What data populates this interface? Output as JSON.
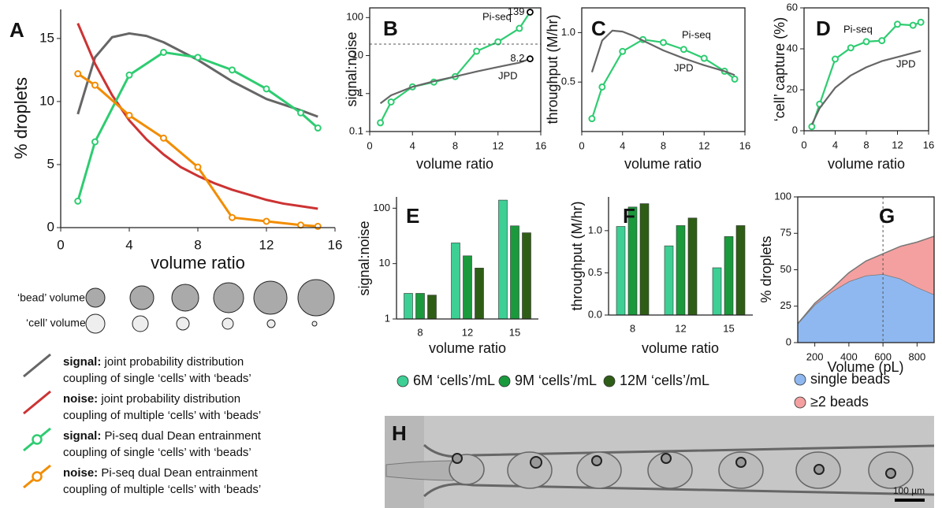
{
  "chart_data": [
    {
      "type": "line",
      "label": "A",
      "xlabel": "volume ratio",
      "ylabel": "% droplets",
      "xlim": [
        0,
        16
      ],
      "xticks": [
        0,
        4,
        8,
        12,
        16
      ],
      "ylim": [
        0,
        17.3
      ],
      "yticks": [
        0,
        5,
        10,
        15
      ],
      "series": [
        {
          "name": "signal:",
          "description": [
            "joint probability distribution",
            "coupling of single ‘cells’ with ‘beads’"
          ],
          "color": "#666666",
          "x": [
            1,
            2,
            3,
            4,
            5,
            6,
            8,
            10,
            12,
            14,
            15
          ],
          "values": [
            9.0,
            13.5,
            15.1,
            15.4,
            15.2,
            14.7,
            13.3,
            11.6,
            10.2,
            9.3,
            8.8
          ]
        },
        {
          "name": "noise:",
          "description": [
            "joint probability distribution",
            "coupling of multiple ‘cells’ with ‘beads’"
          ],
          "color": "#cc3333",
          "x": [
            1,
            2,
            3,
            4,
            5,
            6,
            7,
            8,
            9,
            10,
            11,
            12,
            13,
            14,
            15
          ],
          "values": [
            16.2,
            13.0,
            10.5,
            8.5,
            7.0,
            5.8,
            4.8,
            4.1,
            3.5,
            3.0,
            2.6,
            2.2,
            1.9,
            1.7,
            1.5
          ]
        },
        {
          "name": "signal:",
          "description": [
            "Pi-seq dual Dean entrainment",
            "coupling of single ‘cells’ with ‘beads’"
          ],
          "color": "#2ecc71",
          "markers": true,
          "x": [
            1,
            2,
            4,
            6,
            8,
            10,
            12,
            14,
            15
          ],
          "values": [
            2.1,
            6.8,
            12.1,
            13.9,
            13.5,
            12.5,
            11.0,
            9.1,
            7.9
          ]
        },
        {
          "name": "noise:",
          "description": [
            "Pi-seq dual Dean entrainment",
            "coupling of multiple ‘cells’ with ‘beads’"
          ],
          "color": "#f28c00",
          "markers": true,
          "x": [
            1,
            2,
            4,
            6,
            8,
            10,
            12,
            14,
            15
          ],
          "values": [
            12.2,
            11.3,
            8.9,
            7.1,
            4.8,
            0.8,
            0.5,
            0.2,
            0.1
          ]
        }
      ]
    },
    {
      "type": "line",
      "label": "B",
      "xlabel": "volume ratio",
      "ylabel": "signal:noise",
      "log_y": true,
      "xlim": [
        0,
        16
      ],
      "xticks": [
        0,
        4,
        8,
        12,
        16
      ],
      "ylim": [
        0.1,
        180
      ],
      "yticks": [
        0.1,
        1,
        10,
        100
      ],
      "hline": 20,
      "series": [
        {
          "name": "Pi-seq",
          "color": "#2ecc71",
          "markers": true,
          "last_marker_color": "#000000",
          "x": [
            1,
            2,
            4,
            6,
            8,
            10,
            12,
            14,
            15
          ],
          "values": [
            0.17,
            0.6,
            1.5,
            2.0,
            2.8,
            13,
            23,
            52,
            139
          ]
        },
        {
          "name": "JPD",
          "color": "#666666",
          "last_marker_color": "#000000",
          "x": [
            1,
            2,
            4,
            6,
            8,
            10,
            12,
            14,
            15
          ],
          "values": [
            0.55,
            0.9,
            1.5,
            2.1,
            2.8,
            3.8,
            5.0,
            6.5,
            8.2
          ]
        }
      ]
    },
    {
      "type": "line",
      "label": "C",
      "xlabel": "volume ratio",
      "ylabel": "throughput (M/hr)",
      "xlim": [
        0,
        16
      ],
      "xticks": [
        0,
        4,
        8,
        12,
        16
      ],
      "ylim": [
        0,
        1.25
      ],
      "yticks": [
        0.5,
        {
          "value": 1,
          "label": "1.0"
        }
      ],
      "series": [
        {
          "name": "Pi-seq",
          "color": "#2ecc71",
          "markers": true,
          "x": [
            1,
            2,
            4,
            6,
            8,
            10,
            12,
            14,
            15
          ],
          "values": [
            0.13,
            0.45,
            0.81,
            0.93,
            0.9,
            0.83,
            0.74,
            0.61,
            0.53
          ]
        },
        {
          "name": "JPD",
          "color": "#666666",
          "x": [
            1,
            2,
            3,
            4,
            5,
            6,
            8,
            10,
            12,
            14,
            15
          ],
          "values": [
            0.6,
            0.92,
            1.02,
            1.01,
            0.97,
            0.92,
            0.82,
            0.74,
            0.67,
            0.61,
            0.57
          ]
        }
      ]
    },
    {
      "type": "line",
      "label": "D",
      "xlabel": "volume ratio",
      "ylabel": "‘cell’ capture (%)",
      "xlim": [
        0,
        16
      ],
      "xticks": [
        0,
        4,
        8,
        12,
        16
      ],
      "ylim": [
        0,
        60
      ],
      "yticks": [
        0,
        20,
        40,
        60
      ],
      "series": [
        {
          "name": "Pi-seq",
          "color": "#2ecc71",
          "markers": true,
          "x": [
            1,
            2,
            4,
            6,
            8,
            10,
            12,
            14,
            15
          ],
          "values": [
            2,
            13,
            35,
            40.5,
            43.5,
            44,
            52,
            51.5,
            53
          ]
        },
        {
          "name": "JPD",
          "color": "#666666",
          "x": [
            1,
            2,
            4,
            6,
            8,
            10,
            12,
            14,
            15
          ],
          "values": [
            3,
            11,
            21,
            27,
            31,
            34,
            36,
            38,
            39
          ]
        }
      ]
    },
    {
      "type": "bar",
      "label": "E",
      "xlabel": "volume ratio",
      "ylabel": "signal:noise",
      "log_y": true,
      "categories": [
        "8",
        "12",
        "15"
      ],
      "ylim": [
        1,
        160
      ],
      "yticks": [
        1,
        10,
        100
      ],
      "series": [
        {
          "name": "6M ‘cells’/mL",
          "color": "#3dcf94",
          "values": [
            2.9,
            23.6,
            140
          ]
        },
        {
          "name": "9M ‘cells’/mL",
          "color": "#1a9a3c",
          "values": [
            2.9,
            13.8,
            48
          ]
        },
        {
          "name": "12M ‘cells’/mL",
          "color": "#2e5e16",
          "values": [
            2.7,
            8.3,
            36
          ]
        }
      ]
    },
    {
      "type": "bar",
      "label": "F",
      "xlabel": "volume ratio",
      "ylabel": "throughput (M/hr)",
      "categories": [
        "8",
        "12",
        "15"
      ],
      "ylim": [
        0,
        1.4
      ],
      "yticks": [
        {
          "value": 0,
          "label": "0.0"
        },
        0.5,
        {
          "value": 1,
          "label": "1.0"
        }
      ],
      "series": [
        {
          "color": "#3dcf94",
          "values": [
            1.05,
            0.82,
            0.56
          ]
        },
        {
          "color": "#1a9a3c",
          "values": [
            1.28,
            1.06,
            0.93
          ]
        },
        {
          "color": "#2e5e16",
          "values": [
            1.32,
            1.15,
            1.06
          ]
        }
      ]
    },
    {
      "type": "area",
      "label": "G",
      "xlabel": "Volume (pL)",
      "ylabel": "% droplets",
      "xlim": [
        100,
        900
      ],
      "xticks": [
        200,
        400,
        600,
        800
      ],
      "ylim": [
        0,
        100
      ],
      "yticks": [
        0,
        25,
        50,
        75,
        100
      ],
      "vline": 600,
      "x": [
        100,
        200,
        300,
        400,
        500,
        600,
        700,
        800,
        900
      ],
      "series": [
        {
          "name": "single beads",
          "color": "#8fb8f0",
          "values": [
            13,
            26,
            35,
            42,
            46,
            47,
            44,
            38,
            33
          ]
        },
        {
          "name": "≥2 beads",
          "color": "#f4a0a0",
          "values": [
            0,
            1,
            2,
            6,
            10,
            14,
            22,
            31,
            40
          ]
        }
      ]
    }
  ],
  "bead_diagram": {
    "bead_label": "‘bead’ volume",
    "cell_label": "‘cell’ volume"
  },
  "micrograph": {
    "label": "H",
    "scale_bar": "100 µm"
  }
}
